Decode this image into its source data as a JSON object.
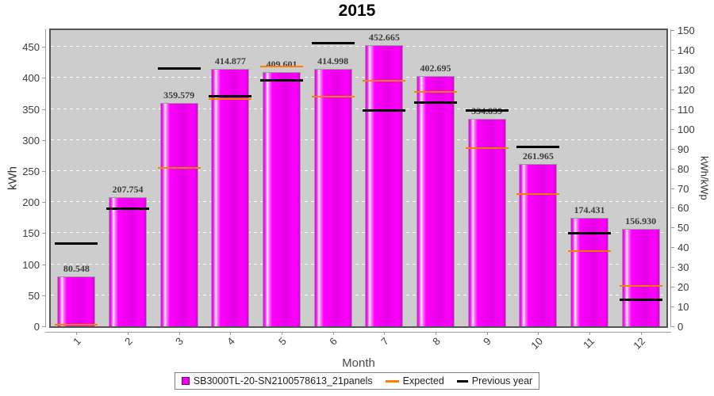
{
  "title": "2015",
  "axes": {
    "left_label": "kWh",
    "right_label": "kWh/kWp",
    "x_label": "Month",
    "left_ticks": [
      0,
      50,
      100,
      150,
      200,
      250,
      300,
      350,
      400,
      450
    ],
    "right_ticks": [
      0,
      10,
      20,
      30,
      40,
      50,
      60,
      70,
      80,
      90,
      100,
      110,
      120,
      130,
      140,
      150
    ]
  },
  "legend": {
    "series_label": "SB3000TL-20-SN2100578613_21panels",
    "expected_label": "Expected",
    "previous_label": "Previous year"
  },
  "colors": {
    "bar": "#ff00ff",
    "bar_swatch": "#ee00ee",
    "bar_swatch_border": "#7a007a",
    "expected": "#ff8000",
    "previous": "#000000",
    "plot_bg": "#cdcdcd"
  },
  "chart_data": {
    "type": "bar",
    "title": "2015",
    "xlabel": "Month",
    "ylabel_left": "kWh",
    "ylabel_right": "kWh/kWp",
    "categories": [
      "1",
      "2",
      "3",
      "4",
      "5",
      "6",
      "7",
      "8",
      "9",
      "10",
      "11",
      "12"
    ],
    "series": [
      {
        "name": "SB3000TL-20-SN2100578613_21panels",
        "type": "bar",
        "unit": "kWh",
        "values": [
          80.548,
          207.754,
          359.579,
          414.877,
          409.601,
          414.998,
          452.665,
          402.695,
          334.839,
          261.965,
          174.431,
          156.93
        ]
      },
      {
        "name": "Expected",
        "type": "tick-line",
        "unit": "kWh",
        "values": [
          2,
          null,
          255,
          366,
          419,
          370,
          395,
          377,
          287,
          213,
          121,
          65
        ]
      },
      {
        "name": "Previous year",
        "type": "tick-line",
        "unit": "kWh",
        "values": [
          133,
          190,
          415,
          371,
          396,
          456,
          347,
          361,
          348,
          289,
          150,
          43
        ]
      }
    ],
    "ylim_left": [
      0,
      477
    ],
    "ylim_right": [
      0,
      150
    ],
    "grid": "horizontal white dashed lines every 50 kWh",
    "legend_position": "bottom center",
    "value_labels": "each bar labeled with value to 3 decimals"
  }
}
